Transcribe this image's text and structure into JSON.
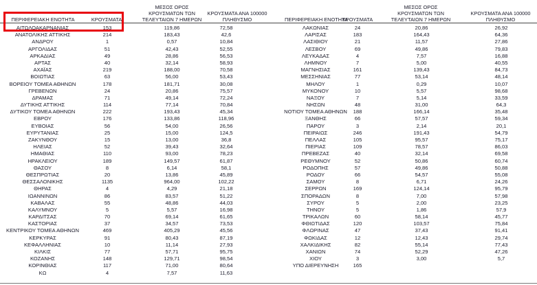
{
  "headers": {
    "region": "ΠΕΡΙΦΕΡΕΙΑΚΗ ΕΝΟΤΗΤΑ",
    "cases": "ΚΡΟΥΣΜΑΤΑ",
    "avg7": "ΜΕΣΟΣ ΟΡΟΣ ΚΡΟΥΣΜΑΤΩΝ ΤΩΝ ΤΕΛΕΥΤΑΙΩΝ 7 ΗΜΕΡΩΝ",
    "per100k": "ΚΡΟΥΣΜΑΤΑ ΑΝΑ 100000 ΠΛΗΘΥΣΜΟ"
  },
  "highlight_color": "#e8000b",
  "left_rows": [
    [
      "ΑΙΤΩΛΟΑΚΑΡΝΑΝΙΑΣ",
      "153",
      "119,86",
      "72,58"
    ],
    [
      "ΑΝΑΤΟΛΙΚΗΣ ΑΤΤΙΚΗΣ",
      "214",
      "183,43",
      "42,6"
    ],
    [
      "ΑΝΔΡΟΥ",
      "1",
      "0,57",
      "10,84"
    ],
    [
      "ΑΡΓΟΛΙΔΑΣ",
      "51",
      "42,43",
      "52,55"
    ],
    [
      "ΑΡΚΑΔΙΑΣ",
      "49",
      "28,86",
      "56,53"
    ],
    [
      "ΑΡΤΑΣ",
      "40",
      "32,14",
      "58,93"
    ],
    [
      "ΑΧΑΪΑΣ",
      "219",
      "188,00",
      "70,58"
    ],
    [
      "ΒΟΙΩΤΙΑΣ",
      "63",
      "56,00",
      "53,43"
    ],
    [
      "ΒΟΡΕΙΟΥ ΤΟΜΕΑ ΑΘΗΝΩΝ",
      "178",
      "181,71",
      "30,08"
    ],
    [
      "ΓΡΕΒΕΝΩΝ",
      "24",
      "20,86",
      "75,57"
    ],
    [
      "ΔΡΑΜΑΣ",
      "71",
      "49,14",
      "72,24"
    ],
    [
      "ΔΥΤΙΚΗΣ ΑΤΤΙΚΗΣ",
      "114",
      "77,14",
      "70,84"
    ],
    [
      "ΔΥΤΙΚΟΥ ΤΟΜΕΑ ΑΘΗΝΩΝ",
      "222",
      "193,43",
      "45,34"
    ],
    [
      "ΕΒΡΟΥ",
      "176",
      "133,86",
      "118,96"
    ],
    [
      "ΕΥΒΟΙΑΣ",
      "56",
      "54,00",
      "26,56"
    ],
    [
      "ΕΥΡΥΤΑΝΙΑΣ",
      "25",
      "15,00",
      "124,5"
    ],
    [
      "ΖΑΚΥΝΘΟΥ",
      "15",
      "13,00",
      "36,8"
    ],
    [
      "ΗΛΕΙΑΣ",
      "52",
      "39,43",
      "32,64"
    ],
    [
      "ΗΜΑΘΙΑΣ",
      "110",
      "93,00",
      "78,23"
    ],
    [
      "ΗΡΑΚΛΕΙΟΥ",
      "189",
      "149,57",
      "61,87"
    ],
    [
      "ΘΑΣΟΥ",
      "8",
      "6,14",
      "58,1"
    ],
    [
      "ΘΕΣΠΡΩΤΙΑΣ",
      "20",
      "13,86",
      "45,89"
    ],
    [
      "ΘΕΣΣΑΛΟΝΙΚΗΣ",
      "1135",
      "964,00",
      "102,22"
    ],
    [
      "ΘΗΡΑΣ",
      "4",
      "4,29",
      "21,18"
    ],
    [
      "ΙΩΑΝΝΙΝΩΝ",
      "86",
      "83,57",
      "51,22"
    ],
    [
      "ΚΑΒΑΛΑΣ",
      "55",
      "48,86",
      "44,03"
    ],
    [
      "ΚΑΛΥΜΝΟΥ",
      "5",
      "5,57",
      "16,98"
    ],
    [
      "ΚΑΡΔΙΤΣΑΣ",
      "70",
      "69,14",
      "61,65"
    ],
    [
      "ΚΑΣΤΟΡΙΑΣ",
      "37",
      "34,57",
      "73,53"
    ],
    [
      "ΚΕΝΤΡΙΚΟΥ ΤΟΜΕΑ ΑΘΗΝΩΝ",
      "469",
      "405,29",
      "45,56"
    ],
    [
      "ΚΕΡΚΥΡΑΣ",
      "91",
      "80,43",
      "87,19"
    ],
    [
      "ΚΕΦΑΛΛΗΝΙΑΣ",
      "10",
      "11,14",
      "27,93"
    ],
    [
      "ΚΙΛΚΙΣ",
      "77",
      "57,71",
      "95,75"
    ],
    [
      "ΚΟΖΑΝΗΣ",
      "148",
      "129,71",
      "98,54"
    ],
    [
      "ΚΟΡΙΝΘΙΑΣ",
      "117",
      "71,00",
      "80,64"
    ],
    [
      "ΚΩ",
      "4",
      "7,57",
      "11,63"
    ]
  ],
  "right_rows": [
    [
      "ΛΑΚΩΝΙΑΣ",
      "24",
      "20,86",
      "26,92"
    ],
    [
      "ΛΑΡΙΣΑΣ",
      "183",
      "164,43",
      "64,36"
    ],
    [
      "ΛΑΣΙΘΙΟΥ",
      "21",
      "11,57",
      "27,86"
    ],
    [
      "ΛΕΣΒΟΥ",
      "69",
      "49,86",
      "79,83"
    ],
    [
      "ΛΕΥΚΑΔΑΣ",
      "4",
      "7,57",
      "16,88"
    ],
    [
      "ΛΗΜΝΟΥ",
      "7",
      "5,00",
      "40,55"
    ],
    [
      "ΜΑΓΝΗΣΙΑΣ",
      "161",
      "139,43",
      "84,73"
    ],
    [
      "ΜΕΣΣΗΝΙΑΣ",
      "77",
      "53,14",
      "48,14"
    ],
    [
      "ΜΗΛΟΥ",
      "1",
      "0,29",
      "10,07"
    ],
    [
      "ΜΥΚΟΝΟΥ",
      "10",
      "5,57",
      "98,68"
    ],
    [
      "ΝΑΞΟΥ",
      "7",
      "5,14",
      "33,59"
    ],
    [
      "ΝΗΣΩΝ",
      "48",
      "31,00",
      "64,3"
    ],
    [
      "ΝΟΤΙΟΥ ΤΟΜΕΑ ΑΘΗΝΩΝ",
      "188",
      "166,14",
      "35,48"
    ],
    [
      "ΞΑΝΘΗΣ",
      "66",
      "57,57",
      "59,34"
    ],
    [
      "ΠΑΡΟΥ",
      "3",
      "2,14",
      "20,1"
    ],
    [
      "ΠΕΙΡΑΙΩΣ",
      "246",
      "191,43",
      "54,79"
    ],
    [
      "ΠΕΛΛΑΣ",
      "105",
      "95,57",
      "75,17"
    ],
    [
      "ΠΙΕΡΙΑΣ",
      "109",
      "78,57",
      "86,03"
    ],
    [
      "ΠΡΕΒΕΖΑΣ",
      "40",
      "32,14",
      "69,58"
    ],
    [
      "ΡΕΘΥΜΝΟΥ",
      "52",
      "50,86",
      "60,74"
    ],
    [
      "ΡΟΔΟΠΗΣ",
      "57",
      "49,86",
      "50,88"
    ],
    [
      "ΡΟΔΟΥ",
      "66",
      "54,57",
      "55,08"
    ],
    [
      "ΣΑΜΟΥ",
      "8",
      "6,71",
      "24,26"
    ],
    [
      "ΣΕΡΡΩΝ",
      "169",
      "124,14",
      "95,79"
    ],
    [
      "ΣΠΟΡΑΔΩΝ",
      "8",
      "7,00",
      "57,98"
    ],
    [
      "ΣΥΡΟΥ",
      "5",
      "2,00",
      "23,25"
    ],
    [
      "ΤΗΝΟΥ",
      "5",
      "1,86",
      "57,9"
    ],
    [
      "ΤΡΙΚΑΛΩΝ",
      "60",
      "58,14",
      "45,77"
    ],
    [
      "ΦΘΙΩΤΙΔΑΣ",
      "120",
      "103,57",
      "75,84"
    ],
    [
      "ΦΛΩΡΙΝΑΣ",
      "47",
      "37,43",
      "91,41"
    ],
    [
      "ΦΩΚΙΔΑΣ",
      "12",
      "12,43",
      "29,74"
    ],
    [
      "ΧΑΛΚΙΔΙΚΗΣ",
      "82",
      "55,14",
      "77,43"
    ],
    [
      "ΧΑΝΙΩΝ",
      "74",
      "52,29",
      "47,26"
    ],
    [
      "ΧΙΟΥ",
      "3",
      "3,00",
      "5,7"
    ],
    [
      "ΥΠΟ ΔΙΕΡΕΥΝΗΣΗ",
      "165",
      "",
      ""
    ]
  ]
}
